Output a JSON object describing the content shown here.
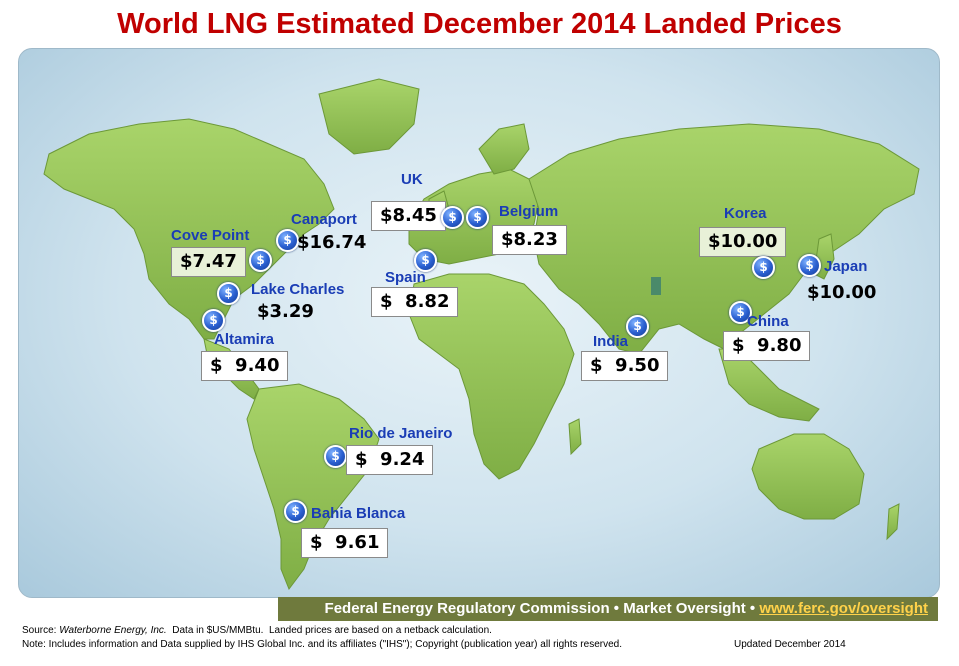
{
  "title": "World LNG Estimated December 2014 Landed Prices",
  "colors": {
    "title": "#c00000",
    "label": "#1a3db5",
    "land": "#8cbf4e",
    "ocean": "#cfe3ee",
    "footer_bar": "#6f7a3d",
    "footer_link": "#ffd24a"
  },
  "ports": [
    {
      "name": "UK",
      "price": "$8.45"
    },
    {
      "name": "Belgium",
      "price": "$8.23"
    },
    {
      "name": "Canaport",
      "price": "$16.74"
    },
    {
      "name": "Cove Point",
      "price": "$7.47"
    },
    {
      "name": "Lake Charles",
      "price": "$3.29"
    },
    {
      "name": "Altamira",
      "price": "$  9.40"
    },
    {
      "name": "Spain",
      "price": "$  8.82"
    },
    {
      "name": "India",
      "price": "$  9.50"
    },
    {
      "name": "Korea",
      "price": "$10.00"
    },
    {
      "name": "Japan",
      "price": "$10.00"
    },
    {
      "name": "China",
      "price": "$  9.80"
    },
    {
      "name": "Rio de Janeiro",
      "price": "$  9.24"
    },
    {
      "name": "Bahia Blanca",
      "price": "$  9.61"
    }
  ],
  "pin_icon": "dollar-icon",
  "pin_glyph": "$",
  "footer": {
    "agency": "Federal Energy Regulatory Commission • Market Oversight • ",
    "link": "www.ferc.gov/oversight"
  },
  "source": {
    "prefix": "Source: ",
    "provider": "Waterborne Energy, Inc.",
    "text": "  Data in $US/MMBtu.  Landed prices are based on a netback calculation."
  },
  "note": "Note: Includes information and Data supplied by IHS Global Inc. and its affiliates (\"IHS\"); Copyright (publication year) all rights reserved.",
  "updated": "Updated  December 2014"
}
